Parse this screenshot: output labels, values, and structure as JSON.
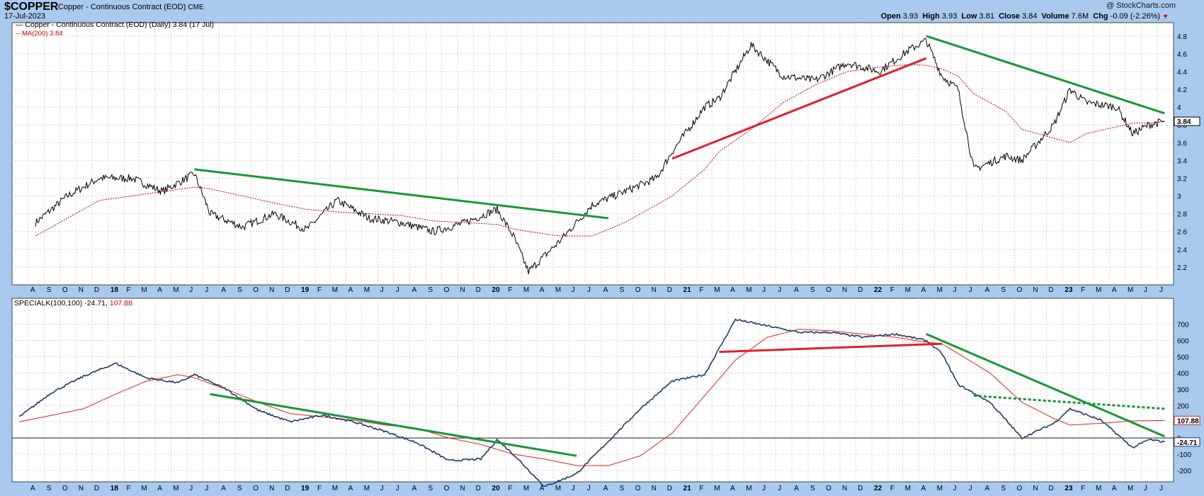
{
  "header": {
    "symbol": "$COPPER",
    "description": "Copper - Continuous Contract (EOD)",
    "exchange": "CME",
    "date": "17-Jul-2023",
    "watermark": "@ StockCharts.com",
    "open_label": "Open",
    "open": "3.93",
    "high_label": "High",
    "high": "3.93",
    "low_label": "Low",
    "low": "3.81",
    "close_label": "Close",
    "close": "3.84",
    "volume_label": "Volume",
    "volume": "7.6M",
    "chg_label": "Chg",
    "chg": "-0.09 (-2.26%)"
  },
  "legend": {
    "price_line": "Copper - Continuous Contract (EOD) (Daily) 3.84 (17 Jul)",
    "ma_line": "MA(200) 3.84",
    "ind_name": "SPECIALK(100,100) -24.71,",
    "ind_signal": "107.88"
  },
  "colors": {
    "background": "#a9c9ee",
    "panel": "#ffffff",
    "price": "#000000",
    "ma": "#c00000",
    "indicator": "#1f3a6b",
    "signal": "#e0251c",
    "trend_green": "#199638",
    "trend_red": "#e0202a"
  },
  "chart_data": [
    {
      "type": "line",
      "panel": "price",
      "x": [
        "2017-08",
        "2017-10",
        "2017-12",
        "2018-02",
        "2018-04",
        "2018-06",
        "2018-07",
        "2018-09",
        "2018-11",
        "2019-01",
        "2019-03",
        "2019-05",
        "2019-07",
        "2019-09",
        "2019-11",
        "2020-01",
        "2020-02",
        "2020-03",
        "2020-05",
        "2020-07",
        "2020-09",
        "2020-11",
        "2020-12",
        "2021-02",
        "2021-03",
        "2021-05",
        "2021-07",
        "2021-09",
        "2021-11",
        "2022-01",
        "2022-03",
        "2022-04",
        "2022-05",
        "2022-06",
        "2022-07",
        "2022-09",
        "2022-10",
        "2022-12",
        "2023-01",
        "2023-02",
        "2023-04",
        "2023-05",
        "2023-06",
        "2023-07"
      ],
      "series": [
        {
          "name": "Copper - Continuous Contract (EOD) (Daily)",
          "values": [
            2.7,
            3.0,
            3.2,
            3.2,
            3.05,
            3.25,
            2.8,
            2.65,
            2.8,
            2.62,
            2.95,
            2.75,
            2.7,
            2.6,
            2.7,
            2.85,
            2.55,
            2.15,
            2.5,
            2.9,
            3.05,
            3.2,
            3.5,
            4.0,
            4.1,
            4.7,
            4.35,
            4.3,
            4.5,
            4.4,
            4.65,
            4.75,
            4.35,
            4.2,
            3.3,
            3.45,
            3.4,
            3.8,
            4.2,
            4.05,
            4.0,
            3.7,
            3.8,
            3.84
          ]
        },
        {
          "name": "MA(200)",
          "values": [
            2.55,
            2.75,
            2.95,
            3.0,
            3.05,
            3.1,
            3.08,
            3.0,
            2.92,
            2.85,
            2.82,
            2.8,
            2.78,
            2.72,
            2.7,
            2.68,
            2.63,
            2.6,
            2.55,
            2.55,
            2.7,
            2.9,
            3.0,
            3.3,
            3.5,
            3.75,
            4.05,
            4.25,
            4.4,
            4.45,
            4.48,
            4.47,
            4.43,
            4.35,
            4.15,
            3.95,
            3.75,
            3.65,
            3.6,
            3.7,
            3.78,
            3.82,
            3.82,
            3.84
          ]
        }
      ],
      "ylim": [
        2.0,
        4.95
      ],
      "yticks": [
        2.2,
        2.4,
        2.6,
        2.8,
        3.0,
        3.2,
        3.4,
        3.6,
        3.8,
        4.0,
        4.2,
        4.4,
        4.6,
        4.8
      ],
      "last_value_label": "3.84",
      "trendlines": [
        {
          "color": "green",
          "from": [
            "2018-06",
            3.3
          ],
          "to": [
            "2020-08",
            2.75
          ]
        },
        {
          "color": "red",
          "from": [
            "2020-12",
            3.42
          ],
          "to": [
            "2022-04",
            4.55
          ]
        },
        {
          "color": "green",
          "from": [
            "2022-04",
            4.8
          ],
          "to": [
            "2023-07",
            3.93
          ]
        }
      ]
    },
    {
      "type": "line",
      "panel": "indicator",
      "x": [
        "2017-07",
        "2017-09",
        "2017-11",
        "2018-01",
        "2018-03",
        "2018-05",
        "2018-06",
        "2018-08",
        "2018-10",
        "2018-12",
        "2019-02",
        "2019-04",
        "2019-06",
        "2019-08",
        "2019-10",
        "2019-12",
        "2020-01",
        "2020-02",
        "2020-04",
        "2020-06",
        "2020-08",
        "2020-10",
        "2020-12",
        "2021-02",
        "2021-04",
        "2021-06",
        "2021-08",
        "2021-10",
        "2021-12",
        "2022-02",
        "2022-04",
        "2022-05",
        "2022-06",
        "2022-08",
        "2022-10",
        "2022-12",
        "2023-01",
        "2023-03",
        "2023-05",
        "2023-06",
        "2023-07"
      ],
      "series": [
        {
          "name": "SPECIALK(100,100)",
          "values": [
            130,
            280,
            380,
            460,
            370,
            340,
            390,
            300,
            170,
            100,
            140,
            100,
            40,
            -30,
            -140,
            -130,
            -10,
            -100,
            -300,
            -220,
            -20,
            180,
            350,
            390,
            730,
            690,
            650,
            650,
            620,
            640,
            600,
            520,
            330,
            220,
            0,
            90,
            180,
            110,
            -60,
            -10,
            -24.71
          ]
        },
        {
          "name": "Signal",
          "values": [
            100,
            140,
            180,
            270,
            350,
            390,
            370,
            300,
            220,
            150,
            130,
            110,
            80,
            60,
            0,
            -40,
            -70,
            -100,
            -130,
            -170,
            -170,
            -110,
            30,
            260,
            480,
            620,
            670,
            660,
            640,
            620,
            590,
            580,
            520,
            400,
            220,
            120,
            80,
            90,
            105,
            107,
            107.88
          ]
        }
      ],
      "ylim": [
        -270,
        860
      ],
      "yticks": [
        -200,
        -100,
        0,
        100,
        200,
        300,
        400,
        500,
        600,
        700
      ],
      "last_value_label": "-24.71",
      "signal_value_label": "107.88",
      "trendlines": [
        {
          "color": "green",
          "from": [
            "2018-07",
            270
          ],
          "to": [
            "2020-06",
            -110
          ]
        },
        {
          "color": "red",
          "from": [
            "2021-03",
            530
          ],
          "to": [
            "2022-05",
            580
          ]
        },
        {
          "color": "green",
          "from": [
            "2022-04",
            640
          ],
          "to": [
            "2023-07",
            10
          ]
        },
        {
          "color": "green",
          "style": "dashed",
          "from": [
            "2022-07",
            260
          ],
          "to": [
            "2023-07",
            180
          ]
        }
      ]
    }
  ],
  "x_axis": {
    "ticks": [
      "A",
      "S",
      "O",
      "N",
      "D",
      "18",
      "F",
      "M",
      "A",
      "M",
      "J",
      "J",
      "A",
      "S",
      "O",
      "N",
      "D",
      "19",
      "F",
      "M",
      "A",
      "M",
      "J",
      "J",
      "A",
      "S",
      "O",
      "N",
      "D",
      "20",
      "F",
      "M",
      "A",
      "M",
      "J",
      "J",
      "A",
      "S",
      "O",
      "N",
      "D",
      "21",
      "F",
      "M",
      "A",
      "M",
      "J",
      "J",
      "A",
      "S",
      "O",
      "N",
      "D",
      "22",
      "F",
      "M",
      "A",
      "M",
      "J",
      "J",
      "A",
      "S",
      "O",
      "N",
      "D",
      "23",
      "F",
      "M",
      "A",
      "M",
      "J",
      "J"
    ]
  }
}
